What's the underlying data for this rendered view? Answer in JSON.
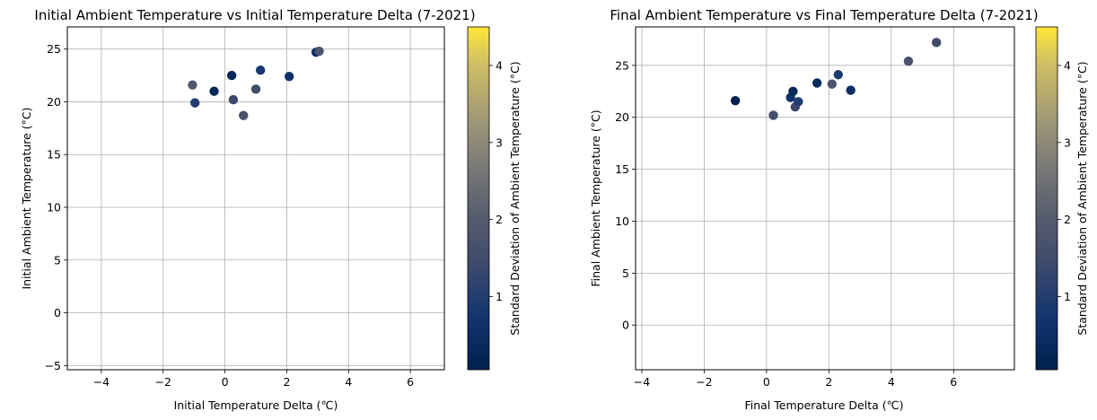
{
  "chart_data": [
    {
      "type": "scatter",
      "title": "Initial Ambient Temperature vs Initial Temperature Delta (7-2021)",
      "xlabel": "Initial Temperature Delta (℃)",
      "ylabel": "Initial Ambient Temperature (°C)",
      "xlim": [
        -5.1,
        7.1
      ],
      "ylim": [
        -5.4,
        27.1
      ],
      "xticks": [
        -4,
        -2,
        0,
        2,
        4,
        6
      ],
      "yticks": [
        -5,
        0,
        5,
        10,
        15,
        20,
        25
      ],
      "grid": true,
      "colorbar": {
        "label": "Standard Deviation of Ambient Temperature (°C)",
        "colormap": "cividis",
        "range": [
          0.05,
          4.5
        ],
        "ticks": [
          1,
          2,
          3,
          4
        ]
      },
      "points": [
        {
          "x": -1.05,
          "y": 21.6,
          "std": 1.9
        },
        {
          "x": -0.97,
          "y": 19.9,
          "std": 1.0
        },
        {
          "x": -0.35,
          "y": 21.0,
          "std": 0.3
        },
        {
          "x": 0.22,
          "y": 22.5,
          "std": 0.3
        },
        {
          "x": 0.27,
          "y": 20.2,
          "std": 1.4
        },
        {
          "x": 0.6,
          "y": 18.7,
          "std": 1.7
        },
        {
          "x": 1.0,
          "y": 21.2,
          "std": 1.5
        },
        {
          "x": 1.15,
          "y": 23.0,
          "std": 0.8
        },
        {
          "x": 2.08,
          "y": 22.4,
          "std": 0.6
        },
        {
          "x": 2.95,
          "y": 24.7,
          "std": 0.4
        },
        {
          "x": 3.05,
          "y": 24.8,
          "std": 1.8
        }
      ]
    },
    {
      "type": "scatter",
      "title": "Final Ambient Temperature vs Final Temperature Delta (7-2021)",
      "xlabel": "Final Temperature Delta (℃)",
      "ylabel": "Final Ambient Temperature (°C)",
      "xlim": [
        -4.2,
        7.95
      ],
      "ylim": [
        -4.3,
        28.7
      ],
      "xticks": [
        -4,
        -2,
        0,
        2,
        4,
        6
      ],
      "yticks": [
        0,
        5,
        10,
        15,
        20,
        25
      ],
      "grid": true,
      "colorbar": {
        "label": "Standard Deviation of Ambient Temperature (°C)",
        "colormap": "cividis",
        "range": [
          0.05,
          4.5
        ],
        "ticks": [
          1,
          2,
          3,
          4
        ]
      },
      "points": [
        {
          "x": -1.0,
          "y": 21.6,
          "std": 0.1
        },
        {
          "x": 0.22,
          "y": 20.2,
          "std": 1.6
        },
        {
          "x": 0.77,
          "y": 21.9,
          "std": 0.6
        },
        {
          "x": 0.85,
          "y": 22.5,
          "std": 0.3
        },
        {
          "x": 0.92,
          "y": 21.0,
          "std": 1.4
        },
        {
          "x": 1.02,
          "y": 21.5,
          "std": 1.0
        },
        {
          "x": 1.62,
          "y": 23.3,
          "std": 0.4
        },
        {
          "x": 2.1,
          "y": 23.2,
          "std": 1.8
        },
        {
          "x": 2.3,
          "y": 24.1,
          "std": 0.9
        },
        {
          "x": 2.7,
          "y": 22.6,
          "std": 0.5
        },
        {
          "x": 4.55,
          "y": 25.4,
          "std": 1.7
        },
        {
          "x": 5.45,
          "y": 27.2,
          "std": 1.5
        }
      ]
    }
  ]
}
